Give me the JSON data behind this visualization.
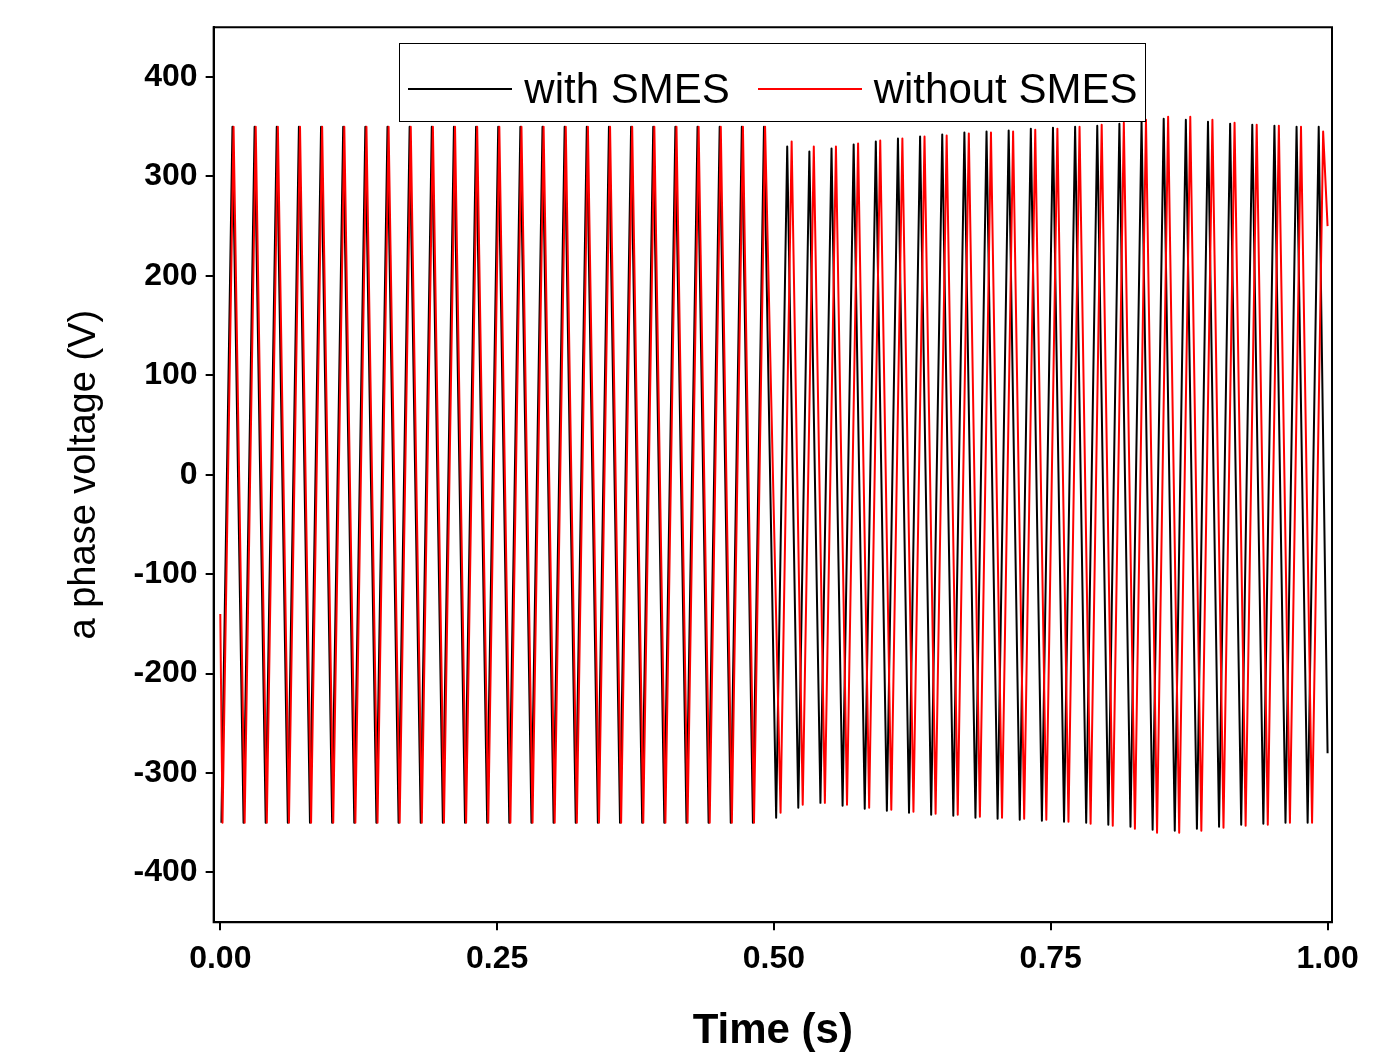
{
  "chart_data": {
    "type": "line",
    "xlabel": "Time (s)",
    "ylabel": "a phase voltage (V)",
    "xlim": [
      -0.006,
      1.004
    ],
    "ylim": [
      -450,
      450
    ],
    "xticks": [
      {
        "value": 0,
        "label": "0.00"
      },
      {
        "value": 0.25,
        "label": "0.25"
      },
      {
        "value": 0.5,
        "label": "0.50"
      },
      {
        "value": 0.75,
        "label": "0.75"
      },
      {
        "value": 1,
        "label": "1.00"
      }
    ],
    "yticks": [
      -400,
      -300,
      -200,
      -100,
      0,
      100,
      200,
      300,
      400
    ],
    "legend": "top",
    "series": [
      {
        "name": "with SMES",
        "color": "#000000",
        "x": [
          0.001,
          0.011,
          0.021,
          0.031,
          0.041,
          0.051,
          0.061,
          0.071,
          0.081,
          0.091,
          0.101,
          0.111,
          0.121,
          0.131,
          0.141,
          0.151,
          0.161,
          0.171,
          0.181,
          0.191,
          0.201,
          0.211,
          0.221,
          0.231,
          0.241,
          0.251,
          0.261,
          0.271,
          0.281,
          0.291,
          0.301,
          0.311,
          0.321,
          0.331,
          0.341,
          0.351,
          0.361,
          0.371,
          0.381,
          0.391,
          0.401,
          0.411,
          0.421,
          0.431,
          0.441,
          0.451,
          0.461,
          0.471,
          0.481,
          0.491,
          0.502,
          0.512,
          0.522,
          0.532,
          0.542,
          0.552,
          0.562,
          0.572,
          0.582,
          0.592,
          0.602,
          0.612,
          0.622,
          0.632,
          0.642,
          0.652,
          0.662,
          0.672,
          0.682,
          0.692,
          0.702,
          0.712,
          0.722,
          0.732,
          0.742,
          0.752,
          0.762,
          0.772,
          0.782,
          0.792,
          0.802,
          0.812,
          0.822,
          0.832,
          0.842,
          0.852,
          0.862,
          0.872,
          0.882,
          0.892,
          0.902,
          0.912,
          0.922,
          0.932,
          0.942,
          0.952,
          0.962,
          0.972,
          0.982,
          0.992,
          1.0
        ],
        "values": [
          -350,
          350,
          -350,
          350,
          -350,
          350,
          -350,
          350,
          -350,
          350,
          -350,
          350,
          -350,
          350,
          -350,
          350,
          -350,
          350,
          -350,
          350,
          -350,
          350,
          -350,
          350,
          -350,
          350,
          -350,
          350,
          -350,
          350,
          -350,
          350,
          -350,
          350,
          -350,
          350,
          -350,
          350,
          -350,
          350,
          -350,
          350,
          -350,
          350,
          -350,
          350,
          -350,
          350,
          -350,
          350,
          -345,
          330,
          -335,
          325,
          -330,
          328,
          -333,
          332,
          -336,
          335,
          -338,
          338,
          -340,
          340,
          -342,
          342,
          -343,
          344,
          -345,
          345,
          -346,
          346,
          -347,
          348,
          -348,
          349,
          -349,
          350,
          -350,
          351,
          -352,
          353,
          -354,
          355,
          -357,
          358,
          -358,
          357,
          -356,
          355,
          -354,
          353,
          -352,
          352,
          -351,
          351,
          -350,
          350,
          -350,
          350,
          -280
        ]
      },
      {
        "name": "without SMES",
        "color": "#ff0000",
        "x": [
          0,
          0.002,
          0.012,
          0.022,
          0.032,
          0.042,
          0.052,
          0.062,
          0.072,
          0.082,
          0.092,
          0.102,
          0.112,
          0.122,
          0.132,
          0.142,
          0.152,
          0.162,
          0.172,
          0.182,
          0.192,
          0.202,
          0.212,
          0.222,
          0.232,
          0.242,
          0.252,
          0.262,
          0.272,
          0.282,
          0.292,
          0.302,
          0.312,
          0.322,
          0.332,
          0.342,
          0.352,
          0.362,
          0.372,
          0.382,
          0.392,
          0.402,
          0.412,
          0.422,
          0.432,
          0.442,
          0.452,
          0.462,
          0.472,
          0.482,
          0.492,
          0.506,
          0.516,
          0.526,
          0.536,
          0.546,
          0.556,
          0.566,
          0.576,
          0.586,
          0.596,
          0.606,
          0.616,
          0.626,
          0.636,
          0.646,
          0.656,
          0.666,
          0.676,
          0.686,
          0.696,
          0.706,
          0.716,
          0.726,
          0.736,
          0.746,
          0.756,
          0.766,
          0.776,
          0.786,
          0.796,
          0.806,
          0.816,
          0.826,
          0.836,
          0.846,
          0.856,
          0.866,
          0.876,
          0.886,
          0.896,
          0.906,
          0.916,
          0.926,
          0.936,
          0.946,
          0.956,
          0.966,
          0.976,
          0.986,
          0.996,
          1.0
        ],
        "values": [
          -140,
          -350,
          350,
          -350,
          350,
          -350,
          350,
          -350,
          350,
          -350,
          350,
          -350,
          350,
          -350,
          350,
          -350,
          350,
          -350,
          350,
          -350,
          350,
          -350,
          350,
          -350,
          350,
          -350,
          350,
          -350,
          350,
          -350,
          350,
          -350,
          350,
          -350,
          350,
          -350,
          350,
          -350,
          350,
          -350,
          350,
          -350,
          350,
          -350,
          350,
          -350,
          350,
          -350,
          350,
          -350,
          350,
          -340,
          335,
          -332,
          330,
          -330,
          330,
          -332,
          333,
          -335,
          336,
          -337,
          338,
          -339,
          340,
          -341,
          341,
          -342,
          343,
          -344,
          344,
          -345,
          345,
          -346,
          347,
          -347,
          348,
          -349,
          350,
          -351,
          352,
          -353,
          354,
          -356,
          357,
          -360,
          360,
          -360,
          360,
          -358,
          357,
          -355,
          354,
          -353,
          352,
          -352,
          351,
          -350,
          350,
          -350,
          345,
          250
        ]
      }
    ]
  }
}
